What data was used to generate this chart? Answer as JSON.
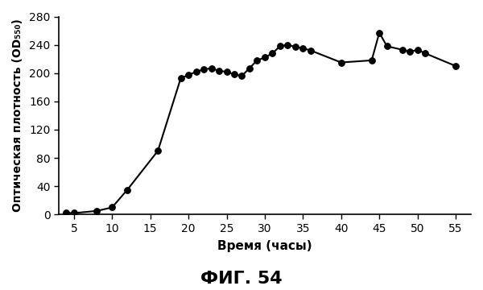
{
  "x": [
    4,
    5,
    8,
    10,
    12,
    16,
    19,
    20,
    21,
    22,
    23,
    24,
    25,
    26,
    27,
    28,
    29,
    30,
    31,
    32,
    33,
    34,
    35,
    36,
    40,
    44,
    45,
    46,
    48,
    49,
    50,
    51,
    55
  ],
  "y": [
    2,
    2,
    5,
    10,
    35,
    90,
    193,
    197,
    202,
    205,
    207,
    203,
    202,
    198,
    196,
    207,
    218,
    222,
    228,
    238,
    240,
    237,
    235,
    232,
    215,
    218,
    257,
    238,
    233,
    230,
    233,
    228,
    210
  ],
  "xlabel": "Время (часы)",
  "ylabel": "Оптическая плотность (OD₅₅₀)",
  "title": "ФИГ. 54",
  "xlim": [
    3,
    57
  ],
  "ylim": [
    0,
    280
  ],
  "xticks": [
    5,
    10,
    15,
    20,
    25,
    30,
    35,
    40,
    45,
    50,
    55
  ],
  "yticks": [
    0,
    40,
    80,
    120,
    160,
    200,
    240,
    280
  ],
  "line_color": "#000000",
  "marker_color": "#000000",
  "bg_color": "#ffffff"
}
